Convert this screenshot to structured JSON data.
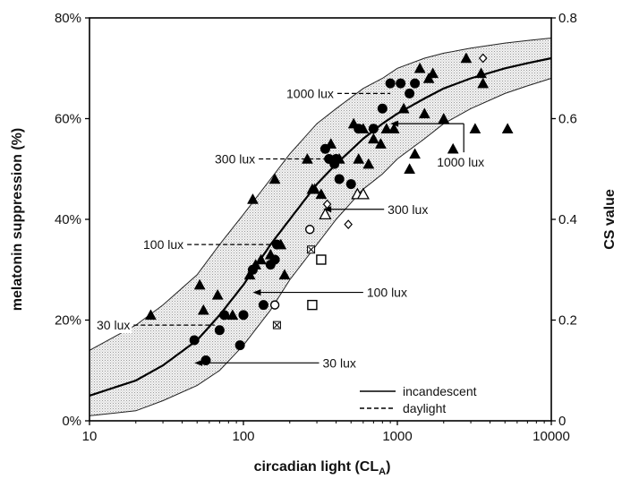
{
  "chart_data": {
    "type": "scatter",
    "xlabel": "circadian light (CL",
    "xlabel_sub": "A",
    "xlabel_end": ")",
    "ylabel": "melatonin suppression (%)",
    "y2label": "CS value",
    "xscale": "log",
    "xlim": [
      10,
      10000
    ],
    "ylim": [
      0,
      80
    ],
    "y2lim": [
      0,
      0.8
    ],
    "x_ticks": [
      "10",
      "100",
      "1000",
      "10000"
    ],
    "y_ticks": [
      "0%",
      "20%",
      "40%",
      "60%",
      "80%"
    ],
    "y2_ticks": [
      "0",
      "0.2",
      "0.4",
      "0.6",
      "0.8"
    ],
    "grid": false,
    "legend_position": "bottom-right",
    "legend": [
      {
        "label": "incandescent",
        "style": "solid"
      },
      {
        "label": "daylight",
        "style": "dashed"
      }
    ],
    "curve": {
      "name": "fitted",
      "x": [
        10,
        20,
        30,
        50,
        70,
        100,
        150,
        200,
        300,
        400,
        600,
        800,
        1000,
        1500,
        2000,
        3000,
        5000,
        7000,
        10000
      ],
      "y": [
        5,
        8,
        11,
        16,
        21,
        27,
        35,
        40,
        47,
        51,
        56,
        59,
        61,
        64,
        66,
        68,
        70,
        71,
        72
      ]
    },
    "band_upper": {
      "x": [
        10,
        20,
        30,
        50,
        70,
        100,
        150,
        200,
        300,
        400,
        600,
        800,
        1000,
        1500,
        2000,
        3000,
        5000,
        7000,
        10000
      ],
      "y": [
        14,
        19,
        23,
        29,
        35,
        41,
        48,
        53,
        59,
        62,
        66,
        68,
        70,
        72,
        73,
        74,
        75,
        75.5,
        76
      ]
    },
    "band_lower": {
      "x": [
        10,
        20,
        30,
        50,
        70,
        100,
        150,
        200,
        300,
        400,
        600,
        800,
        1000,
        1500,
        2000,
        3000,
        5000,
        7000,
        10000
      ],
      "y": [
        1,
        2,
        4,
        7,
        10,
        15,
        22,
        28,
        35,
        40,
        46,
        49,
        52,
        56,
        59,
        62,
        65,
        66.5,
        68
      ]
    },
    "series": [
      {
        "marker": "triangle-filled",
        "points": [
          [
            25,
            21
          ],
          [
            52,
            27
          ],
          [
            55,
            22
          ],
          [
            68,
            25
          ],
          [
            85,
            21
          ],
          [
            110,
            29
          ],
          [
            115,
            44
          ],
          [
            120,
            31
          ],
          [
            130,
            32
          ],
          [
            150,
            33
          ],
          [
            160,
            48
          ],
          [
            175,
            35
          ],
          [
            185,
            29
          ],
          [
            260,
            52
          ],
          [
            280,
            46
          ],
          [
            290,
            46
          ],
          [
            320,
            45
          ],
          [
            370,
            55
          ],
          [
            420,
            52
          ],
          [
            520,
            59
          ],
          [
            560,
            52
          ],
          [
            600,
            58
          ],
          [
            650,
            51
          ],
          [
            700,
            56
          ],
          [
            780,
            55
          ],
          [
            850,
            58
          ],
          [
            950,
            58
          ],
          [
            1100,
            62
          ],
          [
            1200,
            50
          ],
          [
            1300,
            53
          ],
          [
            1400,
            70
          ],
          [
            1500,
            61
          ],
          [
            1600,
            68
          ],
          [
            1700,
            69
          ],
          [
            2000,
            60
          ],
          [
            2300,
            54
          ],
          [
            2800,
            72
          ],
          [
            3200,
            58
          ],
          [
            3600,
            67
          ],
          [
            5200,
            58
          ],
          [
            3500,
            69
          ]
        ]
      },
      {
        "marker": "circle-filled",
        "points": [
          [
            48,
            16
          ],
          [
            57,
            12
          ],
          [
            70,
            18
          ],
          [
            75,
            21
          ],
          [
            95,
            15
          ],
          [
            100,
            21
          ],
          [
            115,
            30
          ],
          [
            135,
            23
          ],
          [
            150,
            31
          ],
          [
            160,
            32
          ],
          [
            165,
            35
          ],
          [
            340,
            54
          ],
          [
            360,
            52
          ],
          [
            390,
            51
          ],
          [
            400,
            52
          ],
          [
            420,
            48
          ],
          [
            500,
            47
          ],
          [
            560,
            58
          ],
          [
            700,
            58
          ],
          [
            800,
            62
          ],
          [
            900,
            67
          ],
          [
            1050,
            67
          ],
          [
            1200,
            65
          ],
          [
            1300,
            67
          ]
        ]
      },
      {
        "marker": "circle-open",
        "points": [
          [
            160,
            23
          ],
          [
            270,
            38
          ]
        ]
      },
      {
        "marker": "square-open",
        "points": [
          [
            280,
            23
          ],
          [
            320,
            32
          ]
        ]
      },
      {
        "marker": "triangle-open",
        "points": [
          [
            340,
            41
          ],
          [
            550,
            45
          ],
          [
            600,
            45
          ]
        ]
      },
      {
        "marker": "diamond-open",
        "points": [
          [
            350,
            43
          ],
          [
            480,
            39
          ],
          [
            3600,
            72
          ]
        ]
      },
      {
        "marker": "x-open",
        "points": [
          [
            165,
            19
          ],
          [
            275,
            34
          ]
        ]
      }
    ],
    "annotations": {
      "daylight": [
        {
          "label": "1000 lux",
          "x": 900,
          "y": 65
        },
        {
          "label": "300 lux",
          "x": 360,
          "y": 52
        },
        {
          "label": "100 lux",
          "x": 155,
          "y": 35
        },
        {
          "label": "30 lux",
          "x": 65,
          "y": 19
        }
      ],
      "incandescent": [
        {
          "label": "1000 lux",
          "x": 2700,
          "y": 59,
          "from_x": 900
        },
        {
          "label": "300 lux",
          "x": 820,
          "y": 42,
          "from_x": 330
        },
        {
          "label": "100 lux",
          "x": 600,
          "y": 25.5,
          "from_x": 115
        },
        {
          "label": "30 lux",
          "x": 310,
          "y": 11.5,
          "from_x": 48
        }
      ]
    }
  }
}
